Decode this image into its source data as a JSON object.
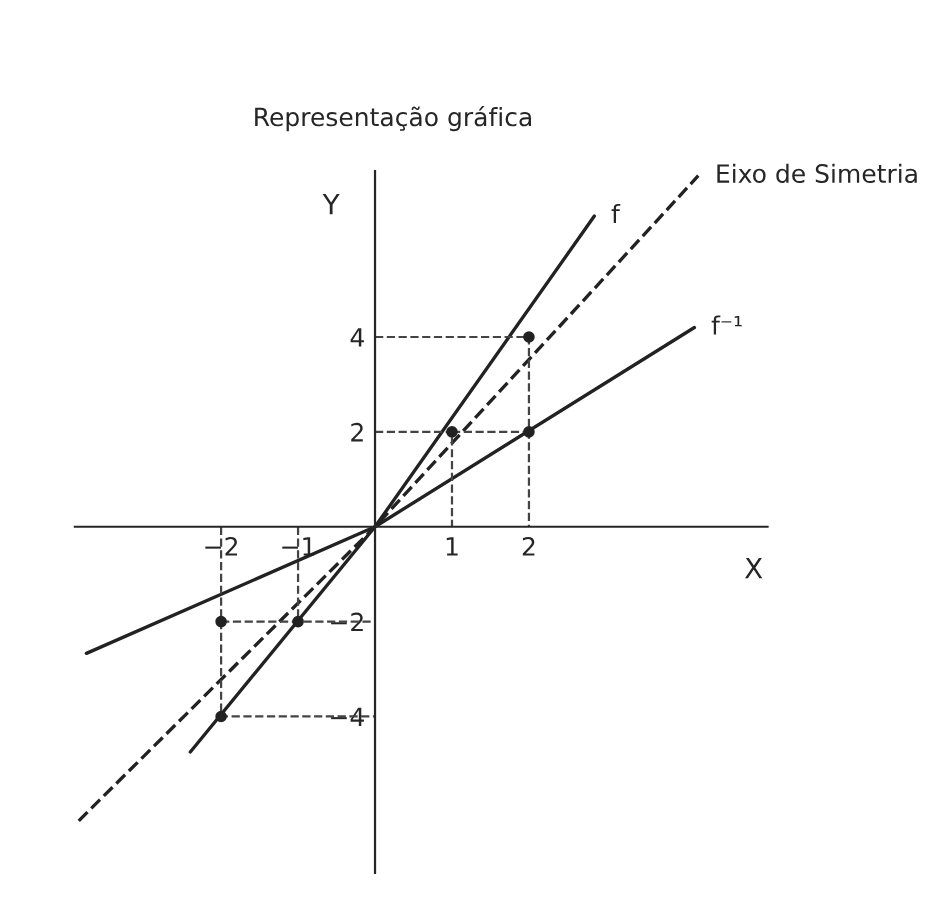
{
  "chart_data": {
    "type": "line",
    "title": "Representação gráfica",
    "xlabel": "X",
    "ylabel": "Y",
    "xlim": [
      -3.9,
      5.1
    ],
    "ylim": [
      -7.3,
      7.5
    ],
    "xticks": [
      {
        "value": -2,
        "label": "−2"
      },
      {
        "value": -1,
        "label": "−1"
      },
      1,
      2
    ],
    "yticks": [
      {
        "value": -4,
        "label": "−4"
      },
      {
        "value": -2,
        "label": "−2"
      },
      2,
      4
    ],
    "series": [
      {
        "name": "f",
        "color": "#222222",
        "line_style": "solid",
        "x": [
          -2.4,
          0,
          2.85
        ],
        "values": [
          -4.75,
          0,
          6.55
        ]
      },
      {
        "name": "f⁻¹",
        "color": "#222222",
        "line_style": "solid",
        "x": [
          -3.75,
          0,
          4.15
        ],
        "values": [
          -2.67,
          0,
          4.2
        ]
      },
      {
        "name": "Eixo de Simetria",
        "color": "#222222",
        "line_style": "dashed",
        "x": [
          -3.85,
          0,
          4.2
        ],
        "values": [
          -6.2,
          0,
          7.4
        ]
      },
      {
        "type": "line",
        "color": "#444444",
        "line_style": "dashed",
        "x": [
          0,
          2,
          2
        ],
        "values": [
          4,
          4,
          0
        ]
      },
      {
        "type": "line",
        "color": "#444444",
        "line_style": "dashed",
        "x": [
          0,
          1,
          1
        ],
        "values": [
          2,
          2,
          0
        ]
      },
      {
        "type": "line",
        "color": "#444444",
        "line_style": "dashed",
        "x": [
          1,
          2
        ],
        "values": [
          2,
          2
        ]
      },
      {
        "type": "line",
        "color": "#444444",
        "line_style": "dashed",
        "x": [
          -2,
          -2,
          0
        ],
        "values": [
          0,
          -4,
          -4
        ]
      },
      {
        "type": "line",
        "color": "#444444",
        "line_style": "dashed",
        "x": [
          -1,
          -1
        ],
        "values": [
          0,
          -2
        ]
      },
      {
        "type": "line",
        "color": "#444444",
        "line_style": "dashed",
        "x": [
          -2,
          0
        ],
        "values": [
          -2,
          -2
        ]
      },
      {
        "type": "scatter",
        "color": "#222222",
        "marker": "circle",
        "x": [
          1,
          2,
          2,
          -1,
          -2,
          -2
        ],
        "values": [
          2,
          4,
          2,
          -2,
          -4,
          -2
        ]
      }
    ]
  }
}
